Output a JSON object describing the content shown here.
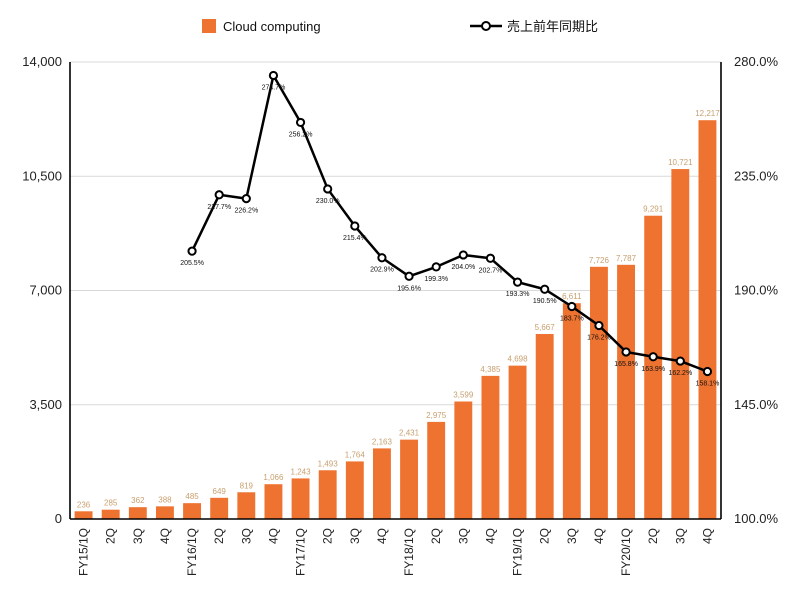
{
  "chart_data": {
    "type": "bar",
    "categories": [
      "FY15/1Q",
      "2Q",
      "3Q",
      "4Q",
      "FY16/1Q",
      "2Q",
      "3Q",
      "4Q",
      "FY17/1Q",
      "2Q",
      "3Q",
      "4Q",
      "FY18/1Q",
      "2Q",
      "3Q",
      "4Q",
      "FY19/1Q",
      "2Q",
      "3Q",
      "4Q",
      "FY20/1Q",
      "2Q",
      "3Q",
      "4Q"
    ],
    "series": [
      {
        "name": "Cloud computing",
        "type": "bar",
        "axis": "left",
        "color": "#ee7330",
        "values": [
          236,
          285,
          362,
          388,
          485,
          649,
          819,
          1066,
          1243,
          1493,
          1764,
          2163,
          2431,
          2975,
          3599,
          4385,
          4698,
          5667,
          6611,
          7726,
          7787,
          9291,
          10721,
          12217
        ],
        "labels": [
          "236",
          "285",
          "362",
          "388",
          "485",
          "649",
          "819",
          "1,066",
          "1,243",
          "1,493",
          "1,764",
          "2,163",
          "2,431",
          "2,975",
          "3,599",
          "4,385",
          "4,698",
          "5,667",
          "6,611",
          "7,726",
          "7,787",
          "9,291",
          "10,721",
          "12,217"
        ]
      },
      {
        "name": "売上前年同期比",
        "type": "line",
        "axis": "right",
        "color": "#000000",
        "values": [
          null,
          null,
          null,
          null,
          205.5,
          227.7,
          226.2,
          274.7,
          256.2,
          230.0,
          215.4,
          202.9,
          195.6,
          199.3,
          204.0,
          202.7,
          193.3,
          190.5,
          183.7,
          176.2,
          165.8,
          163.9,
          162.2,
          158.1
        ],
        "labels": [
          "",
          "",
          "",
          "",
          "205.5%",
          "227.7%",
          "226.2%",
          "274.7%",
          "256.2%",
          "230.0%",
          "215.4%",
          "202.9%",
          "195.6%",
          "199.3%",
          "204.0%",
          "202.7%",
          "193.3%",
          "190.5%",
          "183.7%",
          "176.2%",
          "165.8%",
          "163.9%",
          "162.2%",
          "158.1%"
        ]
      }
    ],
    "ylim": [
      0,
      14000
    ],
    "y2lim": [
      100,
      280
    ],
    "yticks": [
      "0",
      "3,500",
      "7,000",
      "10,500",
      "14,000"
    ],
    "y2ticks": [
      "100.0%",
      "145.0%",
      "190.0%",
      "235.0%",
      "280.0%"
    ],
    "grid": true,
    "legend_position": "top-center"
  }
}
